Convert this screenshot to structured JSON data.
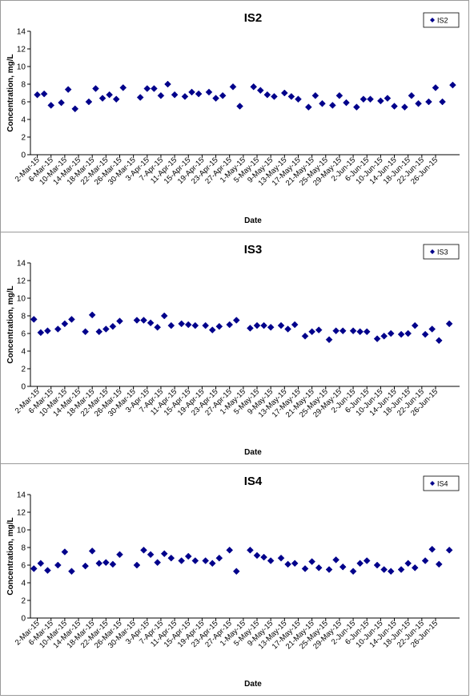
{
  "chart_data": [
    {
      "type": "scatter",
      "title": "IS2",
      "xlabel": "Date",
      "ylabel": "Concentration, mg/L",
      "ylim": [
        0,
        14
      ],
      "yticks": [
        0,
        2,
        4,
        6,
        8,
        10,
        12,
        14
      ],
      "legend_position": "top-right",
      "series": [
        {
          "name": "IS2",
          "color": "#00008B",
          "points": [
            {
              "x": "2015-03-02",
              "y": 6.8
            },
            {
              "x": "2015-03-04",
              "y": 6.9
            },
            {
              "x": "2015-03-06",
              "y": 5.6
            },
            {
              "x": "2015-03-09",
              "y": 5.9
            },
            {
              "x": "2015-03-11",
              "y": 7.4
            },
            {
              "x": "2015-03-13",
              "y": 5.2
            },
            {
              "x": "2015-03-17",
              "y": 6.0
            },
            {
              "x": "2015-03-19",
              "y": 7.5
            },
            {
              "x": "2015-03-21",
              "y": 6.4
            },
            {
              "x": "2015-03-23",
              "y": 6.8
            },
            {
              "x": "2015-03-25",
              "y": 6.3
            },
            {
              "x": "2015-03-27",
              "y": 7.6
            },
            {
              "x": "2015-04-01",
              "y": 6.5
            },
            {
              "x": "2015-04-03",
              "y": 7.5
            },
            {
              "x": "2015-04-05",
              "y": 7.5
            },
            {
              "x": "2015-04-07",
              "y": 6.7
            },
            {
              "x": "2015-04-09",
              "y": 8.0
            },
            {
              "x": "2015-04-11",
              "y": 6.8
            },
            {
              "x": "2015-04-14",
              "y": 6.6
            },
            {
              "x": "2015-04-16",
              "y": 7.1
            },
            {
              "x": "2015-04-18",
              "y": 6.9
            },
            {
              "x": "2015-04-21",
              "y": 7.1
            },
            {
              "x": "2015-04-23",
              "y": 6.4
            },
            {
              "x": "2015-04-25",
              "y": 6.7
            },
            {
              "x": "2015-04-28",
              "y": 7.7
            },
            {
              "x": "2015-04-30",
              "y": 5.5
            },
            {
              "x": "2015-05-04",
              "y": 7.7
            },
            {
              "x": "2015-05-06",
              "y": 7.3
            },
            {
              "x": "2015-05-08",
              "y": 6.8
            },
            {
              "x": "2015-05-10",
              "y": 6.6
            },
            {
              "x": "2015-05-13",
              "y": 7.0
            },
            {
              "x": "2015-05-15",
              "y": 6.6
            },
            {
              "x": "2015-05-17",
              "y": 6.3
            },
            {
              "x": "2015-05-20",
              "y": 5.4
            },
            {
              "x": "2015-05-22",
              "y": 6.7
            },
            {
              "x": "2015-05-24",
              "y": 5.8
            },
            {
              "x": "2015-05-27",
              "y": 5.6
            },
            {
              "x": "2015-05-29",
              "y": 6.7
            },
            {
              "x": "2015-05-31",
              "y": 5.9
            },
            {
              "x": "2015-06-03",
              "y": 5.4
            },
            {
              "x": "2015-06-05",
              "y": 6.3
            },
            {
              "x": "2015-06-07",
              "y": 6.3
            },
            {
              "x": "2015-06-10",
              "y": 6.1
            },
            {
              "x": "2015-06-12",
              "y": 6.4
            },
            {
              "x": "2015-06-14",
              "y": 5.5
            },
            {
              "x": "2015-06-17",
              "y": 5.4
            },
            {
              "x": "2015-06-19",
              "y": 6.7
            },
            {
              "x": "2015-06-21",
              "y": 5.8
            },
            {
              "x": "2015-06-24",
              "y": 6.0
            },
            {
              "x": "2015-06-26",
              "y": 7.6
            },
            {
              "x": "2015-06-28",
              "y": 6.0
            },
            {
              "x": "2015-07-01",
              "y": 7.9
            }
          ]
        }
      ]
    },
    {
      "type": "scatter",
      "title": "IS3",
      "xlabel": "Date",
      "ylabel": "Concentration, mg/L",
      "ylim": [
        0,
        14
      ],
      "yticks": [
        0,
        2,
        4,
        6,
        8,
        10,
        12,
        14
      ],
      "legend_position": "top-right",
      "series": [
        {
          "name": "IS3",
          "color": "#00008B",
          "points": [
            {
              "x": "2015-03-01",
              "y": 7.6
            },
            {
              "x": "2015-03-03",
              "y": 6.1
            },
            {
              "x": "2015-03-05",
              "y": 6.3
            },
            {
              "x": "2015-03-08",
              "y": 6.5
            },
            {
              "x": "2015-03-10",
              "y": 7.1
            },
            {
              "x": "2015-03-12",
              "y": 7.6
            },
            {
              "x": "2015-03-16",
              "y": 6.2
            },
            {
              "x": "2015-03-18",
              "y": 8.1
            },
            {
              "x": "2015-03-20",
              "y": 6.2
            },
            {
              "x": "2015-03-22",
              "y": 6.5
            },
            {
              "x": "2015-03-24",
              "y": 6.8
            },
            {
              "x": "2015-03-26",
              "y": 7.4
            },
            {
              "x": "2015-03-31",
              "y": 7.5
            },
            {
              "x": "2015-04-02",
              "y": 7.5
            },
            {
              "x": "2015-04-04",
              "y": 7.2
            },
            {
              "x": "2015-04-06",
              "y": 6.7
            },
            {
              "x": "2015-04-08",
              "y": 8.0
            },
            {
              "x": "2015-04-10",
              "y": 6.9
            },
            {
              "x": "2015-04-13",
              "y": 7.1
            },
            {
              "x": "2015-04-15",
              "y": 7.0
            },
            {
              "x": "2015-04-17",
              "y": 6.9
            },
            {
              "x": "2015-04-20",
              "y": 6.9
            },
            {
              "x": "2015-04-22",
              "y": 6.4
            },
            {
              "x": "2015-04-24",
              "y": 6.8
            },
            {
              "x": "2015-04-27",
              "y": 7.0
            },
            {
              "x": "2015-04-29",
              "y": 7.5
            },
            {
              "x": "2015-05-03",
              "y": 6.6
            },
            {
              "x": "2015-05-05",
              "y": 6.9
            },
            {
              "x": "2015-05-07",
              "y": 6.9
            },
            {
              "x": "2015-05-09",
              "y": 6.7
            },
            {
              "x": "2015-05-12",
              "y": 6.9
            },
            {
              "x": "2015-05-14",
              "y": 6.5
            },
            {
              "x": "2015-05-16",
              "y": 7.0
            },
            {
              "x": "2015-05-19",
              "y": 5.7
            },
            {
              "x": "2015-05-21",
              "y": 6.2
            },
            {
              "x": "2015-05-23",
              "y": 6.4
            },
            {
              "x": "2015-05-26",
              "y": 5.3
            },
            {
              "x": "2015-05-28",
              "y": 6.3
            },
            {
              "x": "2015-05-30",
              "y": 6.3
            },
            {
              "x": "2015-06-02",
              "y": 6.3
            },
            {
              "x": "2015-06-04",
              "y": 6.2
            },
            {
              "x": "2015-06-06",
              "y": 6.2
            },
            {
              "x": "2015-06-09",
              "y": 5.4
            },
            {
              "x": "2015-06-11",
              "y": 5.7
            },
            {
              "x": "2015-06-13",
              "y": 6.0
            },
            {
              "x": "2015-06-16",
              "y": 5.9
            },
            {
              "x": "2015-06-18",
              "y": 6.0
            },
            {
              "x": "2015-06-20",
              "y": 6.9
            },
            {
              "x": "2015-06-23",
              "y": 5.9
            },
            {
              "x": "2015-06-25",
              "y": 6.5
            },
            {
              "x": "2015-06-27",
              "y": 5.2
            },
            {
              "x": "2015-06-30",
              "y": 7.1
            }
          ]
        }
      ]
    },
    {
      "type": "scatter",
      "title": "IS4",
      "xlabel": "Date",
      "ylabel": "Concentration, mg/L",
      "ylim": [
        0,
        14
      ],
      "yticks": [
        0,
        2,
        4,
        6,
        8,
        10,
        12,
        14
      ],
      "legend_position": "top-right",
      "series": [
        {
          "name": "IS4",
          "color": "#00008B",
          "points": [
            {
              "x": "2015-03-01",
              "y": 5.6
            },
            {
              "x": "2015-03-03",
              "y": 6.2
            },
            {
              "x": "2015-03-05",
              "y": 5.4
            },
            {
              "x": "2015-03-08",
              "y": 6.0
            },
            {
              "x": "2015-03-10",
              "y": 7.5
            },
            {
              "x": "2015-03-12",
              "y": 5.3
            },
            {
              "x": "2015-03-16",
              "y": 5.9
            },
            {
              "x": "2015-03-18",
              "y": 7.6
            },
            {
              "x": "2015-03-20",
              "y": 6.2
            },
            {
              "x": "2015-03-22",
              "y": 6.3
            },
            {
              "x": "2015-03-24",
              "y": 6.1
            },
            {
              "x": "2015-03-26",
              "y": 7.2
            },
            {
              "x": "2015-03-31",
              "y": 6.0
            },
            {
              "x": "2015-04-02",
              "y": 7.7
            },
            {
              "x": "2015-04-04",
              "y": 7.2
            },
            {
              "x": "2015-04-06",
              "y": 6.3
            },
            {
              "x": "2015-04-08",
              "y": 7.3
            },
            {
              "x": "2015-04-10",
              "y": 6.8
            },
            {
              "x": "2015-04-13",
              "y": 6.5
            },
            {
              "x": "2015-04-15",
              "y": 7.0
            },
            {
              "x": "2015-04-17",
              "y": 6.5
            },
            {
              "x": "2015-04-20",
              "y": 6.5
            },
            {
              "x": "2015-04-22",
              "y": 6.2
            },
            {
              "x": "2015-04-24",
              "y": 6.8
            },
            {
              "x": "2015-04-27",
              "y": 7.7
            },
            {
              "x": "2015-04-29",
              "y": 5.3
            },
            {
              "x": "2015-05-03",
              "y": 7.7
            },
            {
              "x": "2015-05-05",
              "y": 7.1
            },
            {
              "x": "2015-05-07",
              "y": 6.9
            },
            {
              "x": "2015-05-09",
              "y": 6.5
            },
            {
              "x": "2015-05-12",
              "y": 6.8
            },
            {
              "x": "2015-05-14",
              "y": 6.1
            },
            {
              "x": "2015-05-16",
              "y": 6.2
            },
            {
              "x": "2015-05-19",
              "y": 5.6
            },
            {
              "x": "2015-05-21",
              "y": 6.4
            },
            {
              "x": "2015-05-23",
              "y": 5.7
            },
            {
              "x": "2015-05-26",
              "y": 5.5
            },
            {
              "x": "2015-05-28",
              "y": 6.6
            },
            {
              "x": "2015-05-30",
              "y": 5.8
            },
            {
              "x": "2015-06-02",
              "y": 5.3
            },
            {
              "x": "2015-06-04",
              "y": 6.2
            },
            {
              "x": "2015-06-06",
              "y": 6.5
            },
            {
              "x": "2015-06-09",
              "y": 6.0
            },
            {
              "x": "2015-06-11",
              "y": 5.5
            },
            {
              "x": "2015-06-13",
              "y": 5.3
            },
            {
              "x": "2015-06-16",
              "y": 5.5
            },
            {
              "x": "2015-06-18",
              "y": 6.2
            },
            {
              "x": "2015-06-20",
              "y": 5.7
            },
            {
              "x": "2015-06-23",
              "y": 6.5
            },
            {
              "x": "2015-06-25",
              "y": 7.8
            },
            {
              "x": "2015-06-27",
              "y": 6.1
            },
            {
              "x": "2015-06-30",
              "y": 7.7
            }
          ]
        }
      ]
    }
  ],
  "x_tick_labels": [
    "2-Mar-15",
    "6-Mar-15",
    "10-Mar-15",
    "14-Mar-15",
    "18-Mar-15",
    "22-Mar-15",
    "26-Mar-15",
    "30-Mar-15",
    "3-Apr-15",
    "7-Apr-15",
    "11-Apr-15",
    "15-Apr-15",
    "19-Apr-15",
    "23-Apr-15",
    "27-Apr-15",
    "1-May-15",
    "5-May-15",
    "9-May-15",
    "13-May-15",
    "17-May-15",
    "21-May-15",
    "25-May-15",
    "29-May-15",
    "2-Jun-15",
    "6-Jun-15",
    "10-Jun-15",
    "14-Jun-15",
    "18-Jun-15",
    "22-Jun-15",
    "26-Jun-15"
  ],
  "x_tick_dates": [
    "2015-03-02",
    "2015-03-06",
    "2015-03-10",
    "2015-03-14",
    "2015-03-18",
    "2015-03-22",
    "2015-03-26",
    "2015-03-30",
    "2015-04-03",
    "2015-04-07",
    "2015-04-11",
    "2015-04-15",
    "2015-04-19",
    "2015-04-23",
    "2015-04-27",
    "2015-05-01",
    "2015-05-05",
    "2015-05-09",
    "2015-05-13",
    "2015-05-17",
    "2015-05-21",
    "2015-05-25",
    "2015-05-29",
    "2015-06-02",
    "2015-06-06",
    "2015-06-10",
    "2015-06-14",
    "2015-06-18",
    "2015-06-22",
    "2015-06-26"
  ]
}
